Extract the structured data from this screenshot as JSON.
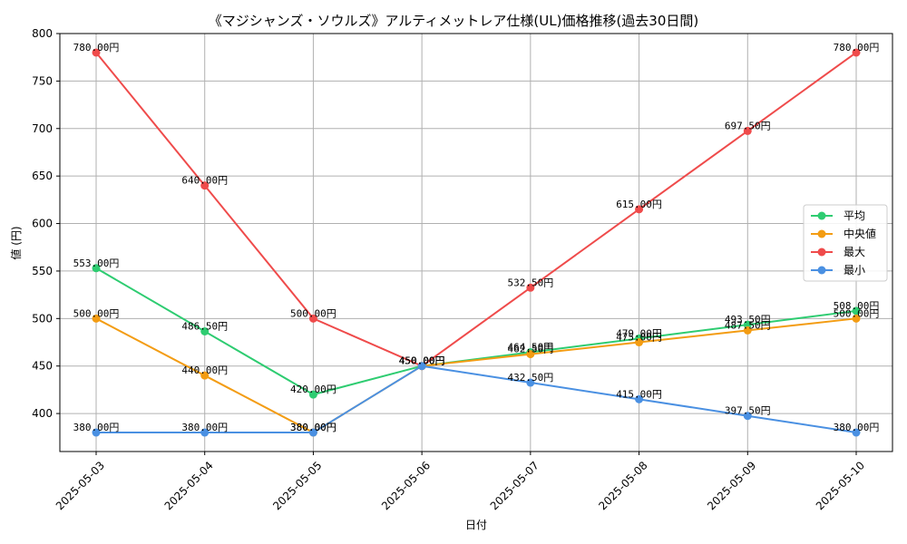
{
  "chart_data": {
    "type": "line",
    "title": "《マジシャンズ・ソウルズ》アルティメットレア仕様(UL)価格推移(過去30日間)",
    "xlabel": "日付",
    "ylabel": "値 (円)",
    "ylim": [
      360,
      800
    ],
    "yticks": [
      400,
      450,
      500,
      550,
      600,
      650,
      700,
      750,
      800
    ],
    "grid": true,
    "legend_position": "right",
    "categories": [
      "2025-05-03",
      "2025-05-04",
      "2025-05-05",
      "2025-05-06",
      "2025-05-07",
      "2025-05-08",
      "2025-05-09",
      "2025-05-10"
    ],
    "series": [
      {
        "name": "平均",
        "color": "#2ecc71",
        "values": [
          553.0,
          486.5,
          420.0,
          450.0,
          464.5,
          479.0,
          493.5,
          508.0
        ],
        "labels": [
          "553.00円",
          "486.50円",
          "420.00円",
          "450.00円",
          "464.50円",
          "479.00円",
          "493.50円",
          "508.00円"
        ]
      },
      {
        "name": "中央値",
        "color": "#f39c12",
        "values": [
          500.0,
          440.0,
          380.0,
          450.0,
          462.5,
          475.0,
          487.5,
          500.0
        ],
        "labels": [
          "500.00円",
          "440.00円",
          "380.00円",
          "450.00円",
          "462.50円",
          "475.00円",
          "487.50円",
          "500.00円"
        ]
      },
      {
        "name": "最大",
        "color": "#ef4b4b",
        "values": [
          780.0,
          640.0,
          500.0,
          450.0,
          532.5,
          615.0,
          697.5,
          780.0
        ],
        "labels": [
          "780.00円",
          "640.00円",
          "500.00円",
          "450.00円",
          "532.50円",
          "615.00円",
          "697.50円",
          "780.00円"
        ]
      },
      {
        "name": "最小",
        "color": "#4a90e2",
        "values": [
          380.0,
          380.0,
          380.0,
          450.0,
          432.5,
          415.0,
          397.5,
          380.0
        ],
        "labels": [
          "380.00円",
          "380.00円",
          "380.00円",
          "450.00円",
          "432.50円",
          "415.00円",
          "397.50円",
          "380.00円"
        ]
      }
    ]
  }
}
